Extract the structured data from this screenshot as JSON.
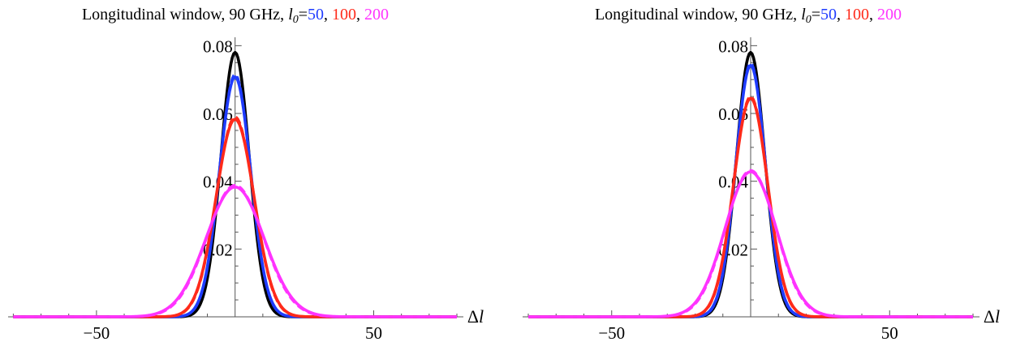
{
  "chart_data": [
    {
      "type": "line",
      "title": {
        "prefix": "Longitudinal window, 90 GHz, ",
        "var": "l",
        "sub": "0",
        "eq": "=",
        "values": [
          {
            "text": "50",
            "color": "#1f3cff"
          },
          {
            "text": ", ",
            "color": "#000000"
          },
          {
            "text": "100",
            "color": "#ff2a1a"
          },
          {
            "text": ", ",
            "color": "#000000"
          },
          {
            "text": "200",
            "color": "#ff33ff"
          }
        ]
      },
      "xlabel": "Δl",
      "ylabel": "",
      "xlim": [
        -80,
        80
      ],
      "ylim": [
        0,
        0.082
      ],
      "x_ticks": [
        -50,
        50
      ],
      "x_tick_labels": [
        "−50",
        "50"
      ],
      "y_ticks": [
        0.02,
        0.04,
        0.06,
        0.08
      ],
      "y_tick_labels": [
        "0.02",
        "0.04",
        "0.06",
        "0.08"
      ],
      "grid": false,
      "series": [
        {
          "color": "#000000",
          "style": "solid",
          "peak": 0.078,
          "sigma": 5.1
        },
        {
          "color": "#1f3cff",
          "style": "dashed",
          "peak": 0.0715,
          "sigma": 5.6
        },
        {
          "color": "#1f3cff",
          "style": "solid",
          "peak": 0.0708,
          "sigma": 5.65
        },
        {
          "color": "#ff2a1a",
          "style": "dashed",
          "peak": 0.059,
          "sigma": 6.75
        },
        {
          "color": "#ff2a1a",
          "style": "solid",
          "peak": 0.0583,
          "sigma": 6.85
        },
        {
          "color": "#ff33ff",
          "style": "dashed",
          "peak": 0.0388,
          "sigma": 10.2
        },
        {
          "color": "#ff33ff",
          "style": "solid",
          "peak": 0.0383,
          "sigma": 10.45
        }
      ]
    },
    {
      "type": "line",
      "title": {
        "prefix": "Longitudinal window, 90 GHz, ",
        "var": "l",
        "sub": "0",
        "eq": "=",
        "values": [
          {
            "text": "50",
            "color": "#1f3cff"
          },
          {
            "text": ", ",
            "color": "#000000"
          },
          {
            "text": "100",
            "color": "#ff2a1a"
          },
          {
            "text": ", ",
            "color": "#000000"
          },
          {
            "text": "200",
            "color": "#ff33ff"
          }
        ]
      },
      "xlabel": "Δl",
      "ylabel": "",
      "xlim": [
        -80,
        80
      ],
      "ylim": [
        0,
        0.082
      ],
      "x_ticks": [
        -50,
        50
      ],
      "x_tick_labels": [
        "−50",
        "50"
      ],
      "y_ticks": [
        0.02,
        0.04,
        0.06,
        0.08
      ],
      "y_tick_labels": [
        "0.02",
        "0.04",
        "0.06",
        "0.08"
      ],
      "grid": false,
      "series": [
        {
          "color": "#000000",
          "style": "solid",
          "peak": 0.078,
          "sigma": 5.1
        },
        {
          "color": "#1f3cff",
          "style": "dashed",
          "peak": 0.0748,
          "sigma": 5.3
        },
        {
          "color": "#1f3cff",
          "style": "solid",
          "peak": 0.0742,
          "sigma": 5.36
        },
        {
          "color": "#ff2a1a",
          "style": "dashed",
          "peak": 0.065,
          "sigma": 6.1
        },
        {
          "color": "#ff2a1a",
          "style": "solid",
          "peak": 0.0645,
          "sigma": 6.17
        },
        {
          "color": "#ff33ff",
          "style": "dashed",
          "peak": 0.0432,
          "sigma": 9.05
        },
        {
          "color": "#ff33ff",
          "style": "solid",
          "peak": 0.0428,
          "sigma": 9.25
        }
      ]
    }
  ]
}
